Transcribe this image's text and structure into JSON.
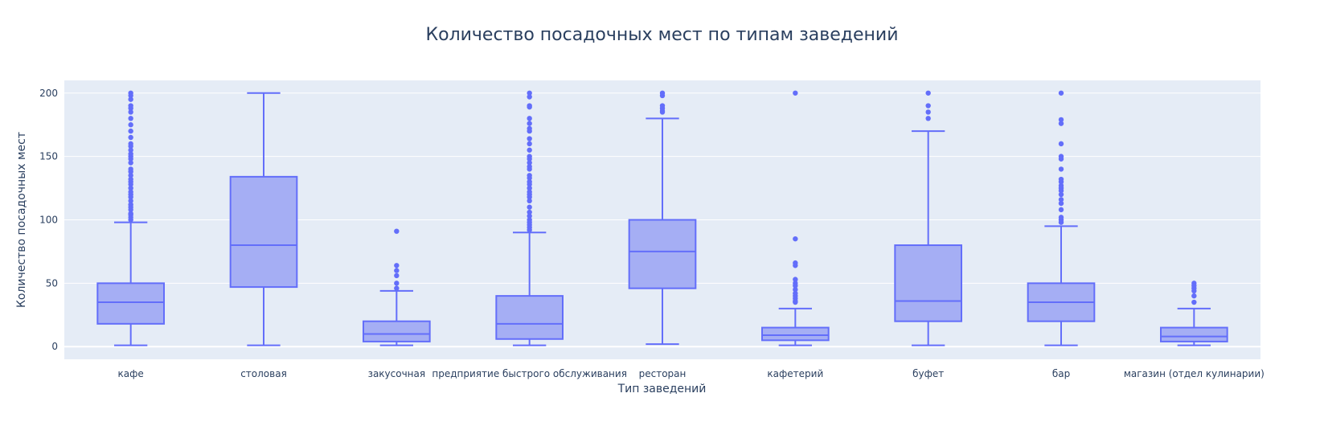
{
  "chart_data": {
    "type": "box",
    "title": "Количество посадочных мест по типам заведений",
    "xlabel": "Тип заведений",
    "ylabel": "Количество посадочных мест",
    "ylim": [
      -10,
      210
    ],
    "yticks": [
      0,
      50,
      100,
      150,
      200
    ],
    "grid": true,
    "colors": {
      "background": "#e5ecf6",
      "grid": "#ffffff",
      "box_fill": "#a5aef4",
      "box_line": "#636efa",
      "text": "#2a3f5f"
    },
    "categories": [
      "кафе",
      "столовая",
      "закусочная",
      "предприятие быстрого обслуживания",
      "ресторан",
      "кафетерий",
      "буфет",
      "бар",
      "магазин (отдел кулинарии)"
    ],
    "series": [
      {
        "category": "кафе",
        "min": 1,
        "q1": 18,
        "median": 35,
        "q3": 50,
        "max": 98,
        "outliers": [
          100,
          102,
          104,
          105,
          108,
          110,
          112,
          115,
          118,
          120,
          122,
          125,
          128,
          130,
          132,
          135,
          138,
          140,
          145,
          148,
          150,
          152,
          155,
          158,
          160,
          165,
          170,
          175,
          180,
          185,
          188,
          190,
          195,
          198,
          200
        ]
      },
      {
        "category": "столовая",
        "min": 1,
        "q1": 47,
        "median": 80,
        "q3": 134,
        "max": 200,
        "outliers": []
      },
      {
        "category": "закусочная",
        "min": 1,
        "q1": 4,
        "median": 10,
        "q3": 20,
        "max": 44,
        "outliers": [
          46,
          50,
          56,
          60,
          64,
          91
        ]
      },
      {
        "category": "предприятие быстрого обслуживания",
        "min": 1,
        "q1": 6,
        "median": 18,
        "q3": 40,
        "max": 90,
        "outliers": [
          92,
          94,
          96,
          98,
          100,
          103,
          106,
          110,
          115,
          118,
          120,
          122,
          125,
          128,
          130,
          133,
          135,
          140,
          142,
          145,
          148,
          150,
          155,
          160,
          164,
          170,
          172,
          176,
          180,
          189,
          190,
          197,
          200
        ]
      },
      {
        "category": "ресторан",
        "min": 2,
        "q1": 46,
        "median": 75,
        "q3": 100,
        "max": 180,
        "outliers": [
          185,
          186,
          188,
          190,
          198,
          200
        ]
      },
      {
        "category": "кафетерий",
        "min": 1,
        "q1": 5,
        "median": 9,
        "q3": 15,
        "max": 30,
        "outliers": [
          35,
          36,
          38,
          40,
          42,
          45,
          48,
          50,
          53,
          64,
          66,
          85,
          200
        ]
      },
      {
        "category": "буфет",
        "min": 1,
        "q1": 20,
        "median": 36,
        "q3": 80,
        "max": 170,
        "outliers": [
          180,
          185,
          190,
          200
        ]
      },
      {
        "category": "бар",
        "min": 1,
        "q1": 20,
        "median": 35,
        "q3": 50,
        "max": 95,
        "outliers": [
          98,
          100,
          102,
          108,
          113,
          116,
          120,
          123,
          125,
          127,
          130,
          132,
          140,
          148,
          150,
          160,
          176,
          179,
          200
        ]
      },
      {
        "category": "магазин (отдел кулинарии)",
        "min": 1,
        "q1": 4,
        "median": 8,
        "q3": 15,
        "max": 30,
        "outliers": [
          35,
          40,
          44,
          46,
          48,
          50
        ]
      }
    ]
  }
}
